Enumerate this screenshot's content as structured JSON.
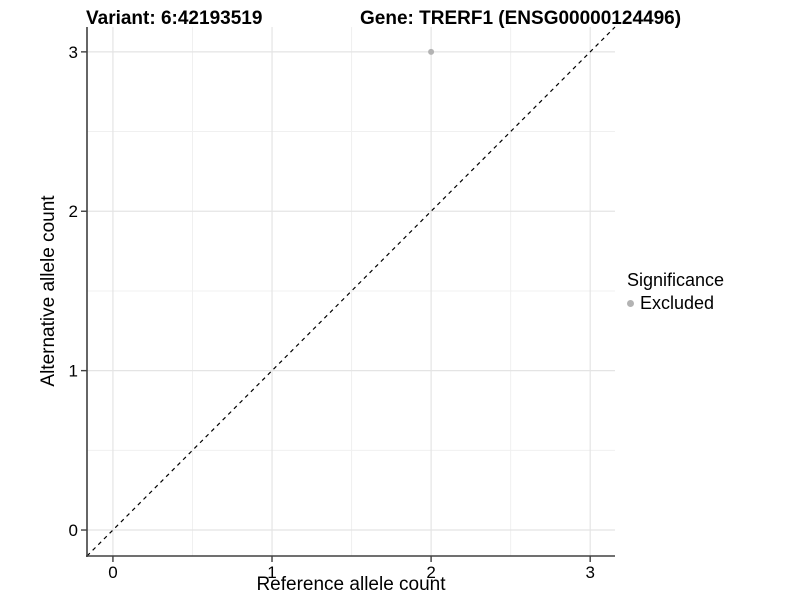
{
  "chart_data": {
    "type": "scatter",
    "title_left": "Variant: 6:42193519",
    "title_right": "Gene: TRERF1 (ENSG00000124496)",
    "xlabel": "Reference allele count",
    "ylabel": "Alternative allele count",
    "xticks": [
      0,
      1,
      2,
      3
    ],
    "yticks": [
      0,
      1,
      2,
      3
    ],
    "minor_xticks": [
      0.5,
      1.5,
      2.5
    ],
    "minor_yticks": [
      0.5,
      1.5,
      2.5
    ],
    "xlim": [
      -0.163,
      3.156
    ],
    "ylim": [
      -0.163,
      3.156
    ],
    "grid": "major+minor",
    "reference_line": {
      "type": "identity",
      "style": "dashed",
      "color": "#000000"
    },
    "points": [
      {
        "x": 2,
        "y": 3,
        "series": "Excluded"
      }
    ],
    "legend": {
      "title": "Significance",
      "position": "right",
      "entries": [
        {
          "label": "Excluded",
          "color": "#b3b3b3",
          "marker": "circle-icon"
        }
      ]
    },
    "colors": {
      "background": "#ffffff",
      "point": "#b3b3b3",
      "grid_major": "#e4e4e4",
      "grid_minor": "#f0f0f0",
      "axis": "#404040",
      "text": "#000000"
    }
  }
}
